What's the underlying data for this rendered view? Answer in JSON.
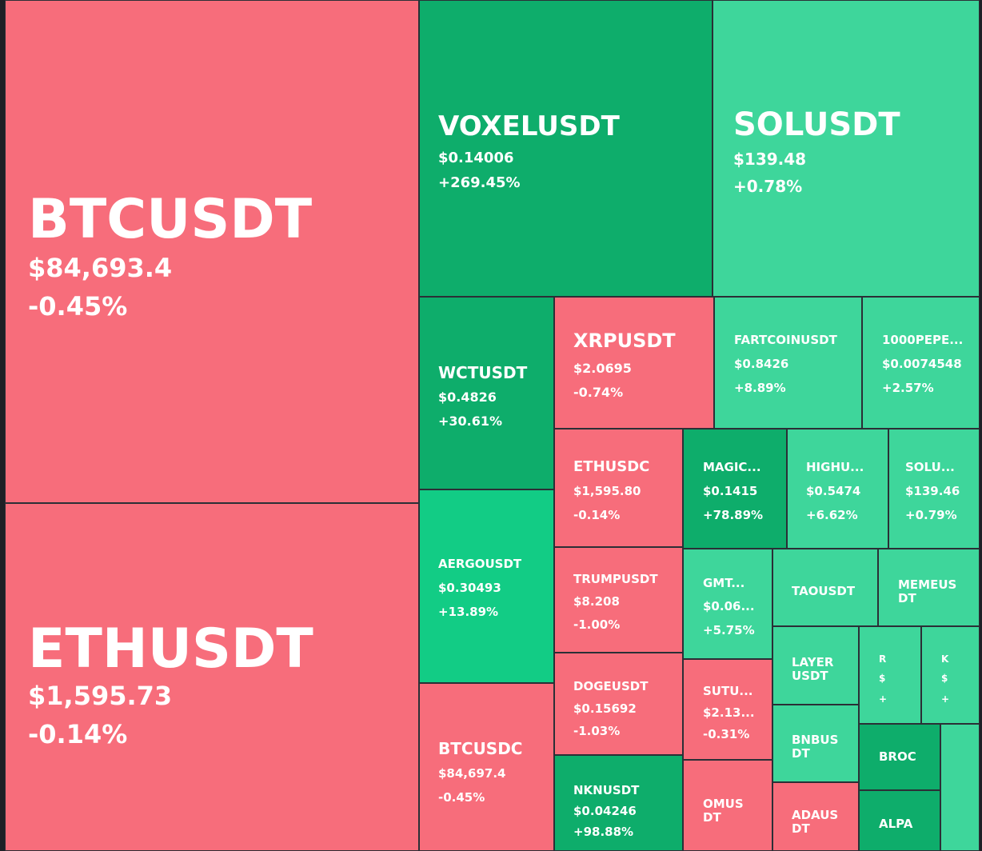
{
  "colors": {
    "background": "#1e2026",
    "border": "#2b2f36",
    "red": "#f76d7b",
    "green_dark": "#0ead6b",
    "green_mid": "#12cc85",
    "green_light": "#3ed69b"
  },
  "tiles": [
    {
      "id": "btcusdt",
      "symbol": "BTCUSDT",
      "price": "$84,693.4",
      "change": "-0.45%",
      "color": "red"
    },
    {
      "id": "ethusdt",
      "symbol": "ETHUSDT",
      "price": "$1,595.73",
      "change": "-0.14%",
      "color": "red"
    },
    {
      "id": "voxelusdt",
      "symbol": "VOXELUSDT",
      "price": "$0.14006",
      "change": "+269.45%",
      "color": "green-dark"
    },
    {
      "id": "solusdt",
      "symbol": "SOLUSDT",
      "price": "$139.48",
      "change": "+0.78%",
      "color": "green-light"
    },
    {
      "id": "wctusdt",
      "symbol": "WCTUSDT",
      "price": "$0.4826",
      "change": "+30.61%",
      "color": "green-dark"
    },
    {
      "id": "xrpusdt",
      "symbol": "XRPUSDT",
      "price": "$2.0695",
      "change": "-0.74%",
      "color": "red"
    },
    {
      "id": "fartcoinusdt",
      "symbol": "FARTCOINUSDT",
      "price": "$0.8426",
      "change": "+8.89%",
      "color": "green-light"
    },
    {
      "id": "1000pepe",
      "symbol": "1000PEPE...",
      "price": "$0.0074548",
      "change": "+2.57%",
      "color": "green-light"
    },
    {
      "id": "aergousdt",
      "symbol": "AERGOUSDT",
      "price": "$0.30493",
      "change": "+13.89%",
      "color": "green-mid"
    },
    {
      "id": "ethusdc",
      "symbol": "ETHUSDC",
      "price": "$1,595.80",
      "change": "-0.14%",
      "color": "red"
    },
    {
      "id": "magic",
      "symbol": "MAGIC...",
      "price": "$0.1415",
      "change": "+78.89%",
      "color": "green-dark"
    },
    {
      "id": "highu",
      "symbol": "HIGHU...",
      "price": "$0.5474",
      "change": "+6.62%",
      "color": "green-light"
    },
    {
      "id": "solu",
      "symbol": "SOLU...",
      "price": "$139.46",
      "change": "+0.79%",
      "color": "green-light"
    },
    {
      "id": "trumpusdt",
      "symbol": "TRUMPUSDT",
      "price": "$8.208",
      "change": "-1.00%",
      "color": "red"
    },
    {
      "id": "gmt",
      "symbol": "GMT...",
      "price": "$0.06...",
      "change": "+5.75%",
      "color": "green-light"
    },
    {
      "id": "taousdt",
      "symbol": "TAOUSDT",
      "price": "",
      "change": "",
      "color": "green-light"
    },
    {
      "id": "memeusdt",
      "symbol": "MEMEUS\nDT",
      "price": "",
      "change": "",
      "color": "green-light"
    },
    {
      "id": "btcusdc",
      "symbol": "BTCUSDC",
      "price": "$84,697.4",
      "change": "-0.45%",
      "color": "red"
    },
    {
      "id": "dogeusdt",
      "symbol": "DOGEUSDT",
      "price": "$0.15692",
      "change": "-1.03%",
      "color": "red"
    },
    {
      "id": "sutu",
      "symbol": "SUTU...",
      "price": "$2.13...",
      "change": "-0.31%",
      "color": "red"
    },
    {
      "id": "layerusdt",
      "symbol": "LAYER\nUSDT",
      "price": "",
      "change": "",
      "color": "green-light"
    },
    {
      "id": "small-r",
      "symbol": "R",
      "price": "$",
      "change": "+",
      "color": "green-light"
    },
    {
      "id": "small-k",
      "symbol": "K",
      "price": "$",
      "change": "+",
      "color": "green-light"
    },
    {
      "id": "bnbusdt",
      "symbol": "BNBUS\nDT",
      "price": "",
      "change": "",
      "color": "green-light"
    },
    {
      "id": "nknusdt",
      "symbol": "NKNUSDT",
      "price": "$0.04246",
      "change": "+98.88%",
      "color": "green-dark"
    },
    {
      "id": "omusdt",
      "symbol": "OMUS\nDT",
      "price": "",
      "change": "",
      "color": "red"
    },
    {
      "id": "adausdt",
      "symbol": "ADAUS\nDT",
      "price": "",
      "change": "",
      "color": "red"
    },
    {
      "id": "broc",
      "symbol": "BROC",
      "price": "",
      "change": "",
      "color": "green-dark"
    },
    {
      "id": "small-right",
      "symbol": "",
      "price": "",
      "change": "",
      "color": "green-light"
    },
    {
      "id": "alpa",
      "symbol": "ALPA",
      "price": "",
      "change": "",
      "color": "green-dark"
    }
  ]
}
